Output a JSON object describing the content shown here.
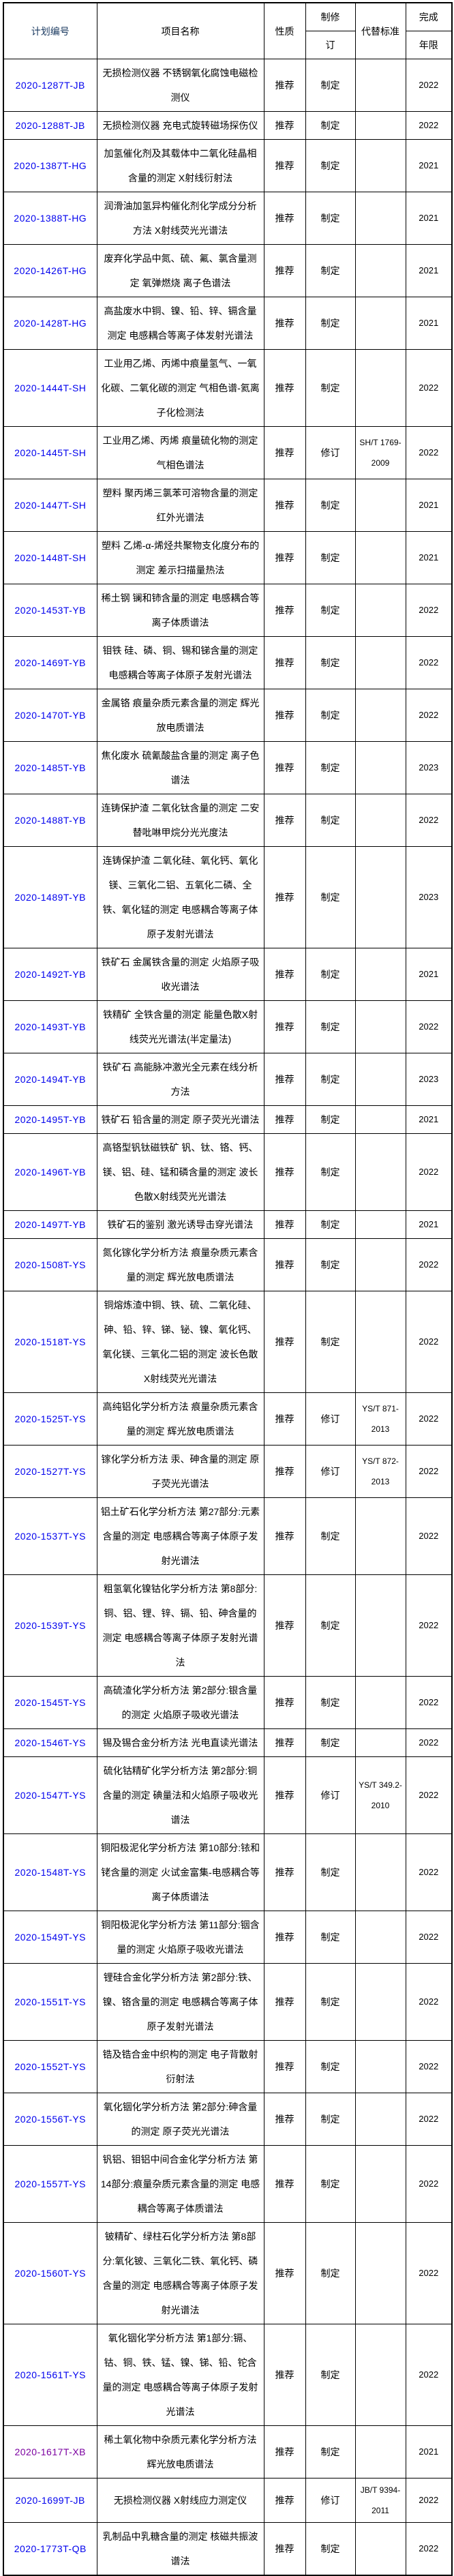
{
  "table": {
    "headers": {
      "plan_no": "计划编号",
      "project_name": "项目名称",
      "nature": "性质",
      "type_line1": "制修",
      "type_line2": "订",
      "replaced_std": "代替标准",
      "year_line1": "完成",
      "year_line2": "年限"
    },
    "colors": {
      "link": "#0000EE",
      "visited_link": "#7B00A0",
      "header_plan_text": "#17375E",
      "border": "#000000"
    },
    "rows": [
      {
        "plan_no": "2020-1287T-JB",
        "project_name": "无损检测仪器 不锈钢氧化腐蚀电磁检测仪",
        "nature": "推荐",
        "revision": "制定",
        "replaced_standard": "",
        "year": "2022",
        "visited": false
      },
      {
        "plan_no": "2020-1288T-JB",
        "project_name": "无损检测仪器 充电式旋转磁场探伤仪",
        "nature": "推荐",
        "revision": "制定",
        "replaced_standard": "",
        "year": "2022",
        "visited": false
      },
      {
        "plan_no": "2020-1387T-HG",
        "project_name": "加氢催化剂及其载体中二氧化硅晶相含量的测定 X射线衍射法",
        "nature": "推荐",
        "revision": "制定",
        "replaced_standard": "",
        "year": "2021",
        "visited": false
      },
      {
        "plan_no": "2020-1388T-HG",
        "project_name": "润滑油加氢异构催化剂化学成分分析方法 X射线荧光光谱法",
        "nature": "推荐",
        "revision": "制定",
        "replaced_standard": "",
        "year": "2021",
        "visited": false
      },
      {
        "plan_no": "2020-1426T-HG",
        "project_name": "废弃化学品中氮、硫、氟、氯含量测定 氧弹燃烧 离子色谱法",
        "nature": "推荐",
        "revision": "制定",
        "replaced_standard": "",
        "year": "2021",
        "visited": false
      },
      {
        "plan_no": "2020-1428T-HG",
        "project_name": "高盐废水中铜、镍、铅、锌、镉含量测定 电感耦合等离子体发射光谱法",
        "nature": "推荐",
        "revision": "制定",
        "replaced_standard": "",
        "year": "2021",
        "visited": false
      },
      {
        "plan_no": "2020-1444T-SH",
        "project_name": "工业用乙烯、丙烯中痕量氢气、一氧化碳、二氧化碳的测定 气相色谱-氦离子化检测法",
        "nature": "推荐",
        "revision": "制定",
        "replaced_standard": "",
        "year": "2022",
        "visited": false
      },
      {
        "plan_no": "2020-1445T-SH",
        "project_name": "工业用乙烯、丙烯 痕量硫化物的测定 气相色谱法",
        "nature": "推荐",
        "revision": "修订",
        "replaced_standard": "SH/T 1769-2009",
        "year": "2022",
        "visited": false
      },
      {
        "plan_no": "2020-1447T-SH",
        "project_name": "塑料 聚丙烯三氯苯可溶物含量的测定 红外光谱法",
        "nature": "推荐",
        "revision": "制定",
        "replaced_standard": "",
        "year": "2021",
        "visited": false
      },
      {
        "plan_no": "2020-1448T-SH",
        "project_name": "塑料 乙烯-α-烯烃共聚物支化度分布的测定 差示扫描量热法",
        "nature": "推荐",
        "revision": "制定",
        "replaced_standard": "",
        "year": "2021",
        "visited": false
      },
      {
        "plan_no": "2020-1453T-YB",
        "project_name": "稀土钢 镧和铈含量的测定 电感耦合等离子体质谱法",
        "nature": "推荐",
        "revision": "制定",
        "replaced_standard": "",
        "year": "2022",
        "visited": false
      },
      {
        "plan_no": "2020-1469T-YB",
        "project_name": "钼铁 硅、磷、铜、锡和锑含量的测定 电感耦合等离子体原子发射光谱法",
        "nature": "推荐",
        "revision": "制定",
        "replaced_standard": "",
        "year": "2022",
        "visited": false
      },
      {
        "plan_no": "2020-1470T-YB",
        "project_name": "金属铬 痕量杂质元素含量的测定 辉光放电质谱法",
        "nature": "推荐",
        "revision": "制定",
        "replaced_standard": "",
        "year": "2022",
        "visited": false
      },
      {
        "plan_no": "2020-1485T-YB",
        "project_name": "焦化废水 硫氰酸盐含量的测定 离子色谱法",
        "nature": "推荐",
        "revision": "制定",
        "replaced_standard": "",
        "year": "2023",
        "visited": false
      },
      {
        "plan_no": "2020-1488T-YB",
        "project_name": "连铸保护渣 二氧化钛含量的测定 二安替吡啉甲烷分光光度法",
        "nature": "推荐",
        "revision": "制定",
        "replaced_standard": "",
        "year": "2022",
        "visited": false
      },
      {
        "plan_no": "2020-1489T-YB",
        "project_name": "连铸保护渣 二氧化硅、氧化钙、氧化镁、三氧化二铝、五氧化二磷、全铁、氧化锰的测定 电感耦合等离子体原子发射光谱法",
        "nature": "推荐",
        "revision": "制定",
        "replaced_standard": "",
        "year": "2023",
        "visited": false
      },
      {
        "plan_no": "2020-1492T-YB",
        "project_name": "铁矿石 金属铁含量的测定 火焰原子吸收光谱法",
        "nature": "推荐",
        "revision": "制定",
        "replaced_standard": "",
        "year": "2021",
        "visited": false
      },
      {
        "plan_no": "2020-1493T-YB",
        "project_name": "铁精矿 全铁含量的测定 能量色散X射线荧光光谱法(半定量法)",
        "nature": "推荐",
        "revision": "制定",
        "replaced_standard": "",
        "year": "2022",
        "visited": false
      },
      {
        "plan_no": "2020-1494T-YB",
        "project_name": "铁矿石 高能脉冲激光全元素在线分析方法",
        "nature": "推荐",
        "revision": "制定",
        "replaced_standard": "",
        "year": "2023",
        "visited": false
      },
      {
        "plan_no": "2020-1495T-YB",
        "project_name": "铁矿石 铅含量的测定 原子荧光光谱法",
        "nature": "推荐",
        "revision": "制定",
        "replaced_standard": "",
        "year": "2021",
        "visited": false
      },
      {
        "plan_no": "2020-1496T-YB",
        "project_name": "高铬型钒钛磁铁矿 钒、钛、铬、钙、镁、铝、硅、锰和磷含量的测定 波长色散X射线荧光光谱法",
        "nature": "推荐",
        "revision": "制定",
        "replaced_standard": "",
        "year": "2022",
        "visited": false
      },
      {
        "plan_no": "2020-1497T-YB",
        "project_name": "铁矿石的鉴别 激光诱导击穿光谱法",
        "nature": "推荐",
        "revision": "制定",
        "replaced_standard": "",
        "year": "2021",
        "visited": false
      },
      {
        "plan_no": "2020-1508T-YS",
        "project_name": "氮化镓化学分析方法 痕量杂质元素含量的测定 辉光放电质谱法",
        "nature": "推荐",
        "revision": "制定",
        "replaced_standard": "",
        "year": "2022",
        "visited": false
      },
      {
        "plan_no": "2020-1518T-YS",
        "project_name": "铜熔炼渣中铜、铁、硫、二氧化硅、砷、铅、锌、锑、铋、镍、氧化钙、氧化镁、三氧化二铝的测定 波长色散X射线荧光光谱法",
        "nature": "推荐",
        "revision": "制定",
        "replaced_standard": "",
        "year": "2022",
        "visited": false
      },
      {
        "plan_no": "2020-1525T-YS",
        "project_name": "高纯铝化学分析方法 痕量杂质元素含量的测定 辉光放电质谱法",
        "nature": "推荐",
        "revision": "修订",
        "replaced_standard": "YS/T 871-2013",
        "year": "2022",
        "visited": false
      },
      {
        "plan_no": "2020-1527T-YS",
        "project_name": "镓化学分析方法 汞、砷含量的测定 原子荧光光谱法",
        "nature": "推荐",
        "revision": "修订",
        "replaced_standard": "YS/T 872-2013",
        "year": "2022",
        "visited": false
      },
      {
        "plan_no": "2020-1537T-YS",
        "project_name": "铝土矿石化学分析方法 第27部分:元素含量的测定 电感耦合等离子体原子发射光谱法",
        "nature": "推荐",
        "revision": "制定",
        "replaced_standard": "",
        "year": "2022",
        "visited": false
      },
      {
        "plan_no": "2020-1539T-YS",
        "project_name": "粗氢氧化镍钴化学分析方法 第8部分:铜、铝、锂、锌、镉、铅、砷含量的测定 电感耦合等离子体原子发射光谱法",
        "nature": "推荐",
        "revision": "制定",
        "replaced_standard": "",
        "year": "2022",
        "visited": false
      },
      {
        "plan_no": "2020-1545T-YS",
        "project_name": "高硫渣化学分析方法 第2部分:银含量的测定 火焰原子吸收光谱法",
        "nature": "推荐",
        "revision": "制定",
        "replaced_standard": "",
        "year": "2022",
        "visited": false
      },
      {
        "plan_no": "2020-1546T-YS",
        "project_name": "锡及锡合金分析方法 光电直读光谱法",
        "nature": "推荐",
        "revision": "制定",
        "replaced_standard": "",
        "year": "2022",
        "visited": false
      },
      {
        "plan_no": "2020-1547T-YS",
        "project_name": "硫化钴精矿化学分析方法 第2部分:铜含量的测定 碘量法和火焰原子吸收光谱法",
        "nature": "推荐",
        "revision": "修订",
        "replaced_standard": "YS/T 349.2-2010",
        "year": "2022",
        "visited": false
      },
      {
        "plan_no": "2020-1548T-YS",
        "project_name": "铜阳极泥化学分析方法 第10部分:铱和铑含量的测定 火试金富集-电感耦合等离子体质谱法",
        "nature": "推荐",
        "revision": "制定",
        "replaced_standard": "",
        "year": "2022",
        "visited": false
      },
      {
        "plan_no": "2020-1549T-YS",
        "project_name": "铜阳极泥化学分析方法 第11部分:铟含量的测定 火焰原子吸收光谱法",
        "nature": "推荐",
        "revision": "制定",
        "replaced_standard": "",
        "year": "2022",
        "visited": false
      },
      {
        "plan_no": "2020-1551T-YS",
        "project_name": "锂硅合金化学分析方法 第2部分:铁、镍、铬含量的测定 电感耦合等离子体原子发射光谱法",
        "nature": "推荐",
        "revision": "制定",
        "replaced_standard": "",
        "year": "2022",
        "visited": false
      },
      {
        "plan_no": "2020-1552T-YS",
        "project_name": "锆及锆合金中织构的测定 电子背散射衍射法",
        "nature": "推荐",
        "revision": "制定",
        "replaced_standard": "",
        "year": "2022",
        "visited": false
      },
      {
        "plan_no": "2020-1556T-YS",
        "project_name": "氧化铟化学分析方法 第2部分:砷含量的测定 原子荧光光谱法",
        "nature": "推荐",
        "revision": "制定",
        "replaced_standard": "",
        "year": "2022",
        "visited": false
      },
      {
        "plan_no": "2020-1557T-YS",
        "project_name": "钒铝、钼铝中间合金化学分析方法 第14部分:痕量杂质元素含量的测定 电感耦合等离子体质谱法",
        "nature": "推荐",
        "revision": "制定",
        "replaced_standard": "",
        "year": "2022",
        "visited": false
      },
      {
        "plan_no": "2020-1560T-YS",
        "project_name": "铍精矿、绿柱石化学分析方法 第8部分:氧化铍、三氧化二铁、氧化钙、磷含量的测定 电感耦合等离子体原子发射光谱法",
        "nature": "推荐",
        "revision": "制定",
        "replaced_standard": "",
        "year": "2022",
        "visited": false
      },
      {
        "plan_no": "2020-1561T-YS",
        "project_name": "氧化铟化学分析方法 第1部分:镉、钴、铜、铁、锰、镍、锑、铅、铊含量的测定 电感耦合等离子体原子发射光谱法",
        "nature": "推荐",
        "revision": "制定",
        "replaced_standard": "",
        "year": "2022",
        "visited": false
      },
      {
        "plan_no": "2020-1617T-XB",
        "project_name": "稀土氧化物中杂质元素化学分析方法 辉光放电质谱法",
        "nature": "推荐",
        "revision": "制定",
        "replaced_standard": "",
        "year": "2021",
        "visited": true
      },
      {
        "plan_no": "2020-1699T-JB",
        "project_name": "无损检测仪器 X射线应力测定仪",
        "nature": "推荐",
        "revision": "修订",
        "replaced_standard": "JB/T 9394-2011",
        "year": "2022",
        "visited": false
      },
      {
        "plan_no": "2020-1773T-QB",
        "project_name": "乳制品中乳糖含量的测定 核磁共振波谱法",
        "nature": "推荐",
        "revision": "制定",
        "replaced_standard": "",
        "year": "2022",
        "visited": false
      }
    ]
  }
}
